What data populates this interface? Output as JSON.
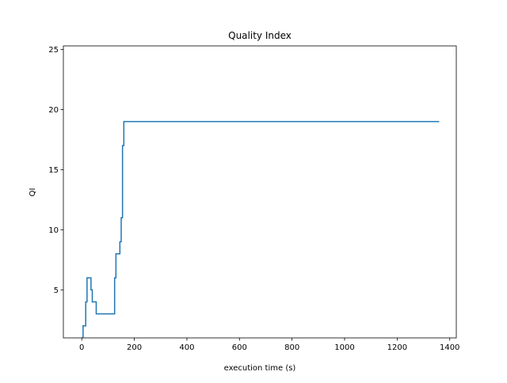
{
  "chart_data": {
    "type": "line",
    "title": "Quality Index",
    "xlabel": "execution time (s)",
    "ylabel": "QI",
    "xlim": [
      -70,
      1425
    ],
    "ylim": [
      1,
      25.3
    ],
    "xticks": [
      0,
      200,
      400,
      600,
      800,
      1000,
      1200,
      1400
    ],
    "yticks": [
      5,
      10,
      15,
      20,
      25
    ],
    "grid": false,
    "line_color": "#1f77b4",
    "series": [
      {
        "step": "post",
        "x": [
          0,
          5,
          15,
          20,
          30,
          35,
          40,
          45,
          55,
          120,
          125,
          130,
          145,
          150,
          155,
          160,
          1360
        ],
        "y": [
          1,
          2,
          4,
          6,
          6,
          5,
          4,
          4,
          3,
          3,
          6,
          8,
          9,
          11,
          17,
          19,
          19
        ]
      }
    ]
  }
}
